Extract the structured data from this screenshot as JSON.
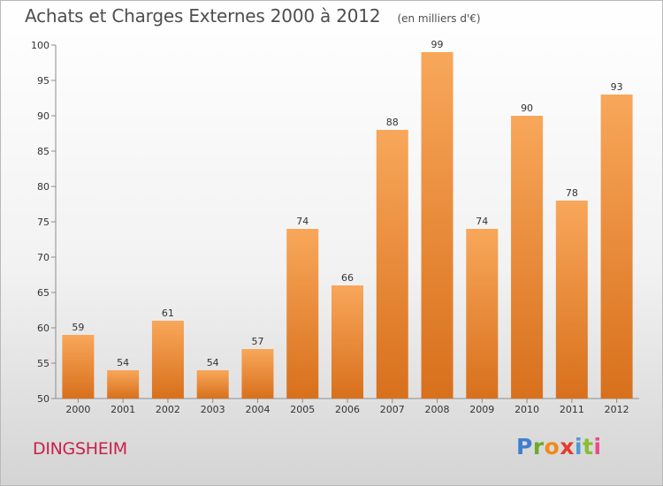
{
  "header": {
    "title": "Achats et Charges Externes 2000 à 2012",
    "subtitle": "(en milliers d'€)"
  },
  "footer": {
    "commune": "DINGSHEIM",
    "brand": "Proxiti"
  },
  "colors": {
    "bar_light": "#f8a75a",
    "bar_dark": "#d8701c",
    "commune_text": "#c8204d"
  },
  "chart_data": {
    "type": "bar",
    "categories": [
      "2000",
      "2001",
      "2002",
      "2003",
      "2004",
      "2005",
      "2006",
      "2007",
      "2008",
      "2009",
      "2010",
      "2011",
      "2012"
    ],
    "values": [
      59,
      54,
      61,
      54,
      57,
      74,
      66,
      88,
      99,
      74,
      90,
      78,
      93
    ],
    "title": "Achats et Charges Externes 2000 à 2012",
    "ylim": [
      50,
      100
    ],
    "yticks": [
      50,
      55,
      60,
      65,
      70,
      75,
      80,
      85,
      90,
      95,
      100
    ],
    "grid": false,
    "data_labels": true
  }
}
